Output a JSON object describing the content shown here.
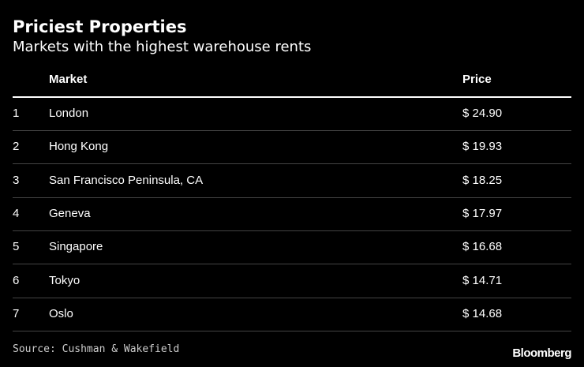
{
  "header": {
    "title": "Priciest Properties",
    "subtitle": "Markets with the highest warehouse rents"
  },
  "table": {
    "columns": {
      "market": "Market",
      "price": "Price"
    },
    "rows": [
      [
        "1",
        "London",
        "$ 24.90"
      ],
      [
        "2",
        "Hong Kong",
        "$ 19.93"
      ],
      [
        "3",
        "San Francisco Peninsula, CA",
        "$ 18.25"
      ],
      [
        "4",
        "Geneva",
        "$ 17.97"
      ],
      [
        "5",
        "Singapore",
        "$ 16.68"
      ],
      [
        "6",
        "Tokyo",
        "$ 14.71"
      ],
      [
        "7",
        "Oslo",
        "$ 14.68"
      ]
    ]
  },
  "footer": {
    "source": "Source: Cushman & Wakefield",
    "brand": "Bloomberg"
  }
}
